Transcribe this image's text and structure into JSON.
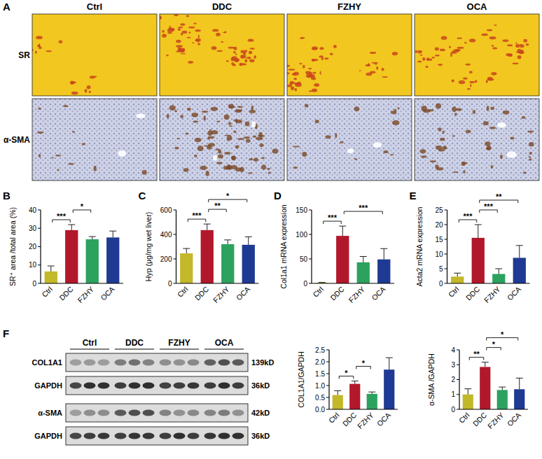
{
  "panel_a": {
    "panel": "A",
    "columns": [
      "Ctrl",
      "DDC",
      "FZHY",
      "OCA"
    ],
    "rows": [
      "SR",
      "α-SMA"
    ]
  },
  "panel_f_blot": {
    "panel": "F",
    "groups": [
      "Ctrl",
      "DDC",
      "FZHY",
      "OCA"
    ],
    "rows": [
      {
        "label": "COL1A1",
        "size": "139kD"
      },
      {
        "label": "GAPDH",
        "size": "36kD"
      },
      {
        "label": "α-SMA",
        "size": "42kD"
      },
      {
        "label": "GAPDH",
        "size": "36kD"
      }
    ]
  },
  "chart_data": [
    {
      "type": "bar",
      "panel": "B",
      "ylabel": "SR⁺ area /total area (%)",
      "categories": [
        "Ctrl",
        "DDC",
        "FZHY",
        "OCA"
      ],
      "values": [
        6.5,
        29,
        24,
        25
      ],
      "errors": [
        3,
        3,
        1.5,
        3.5
      ],
      "colors": [
        "#c2b82a",
        "#b2182b",
        "#2ca25f",
        "#1f3a93"
      ],
      "ylim": [
        0,
        40
      ],
      "yticks": [
        0,
        10,
        20,
        30,
        40
      ],
      "grid": false,
      "annotations": [
        {
          "text": "***",
          "between": [
            "Ctrl",
            "DDC"
          ]
        },
        {
          "text": "*",
          "between": [
            "DDC",
            "FZHY"
          ]
        }
      ]
    },
    {
      "type": "bar",
      "panel": "C",
      "ylabel": "Hyp (μg/mg wet liver)",
      "categories": [
        "Ctrl",
        "DDC",
        "FZHY",
        "OCA"
      ],
      "values": [
        245,
        435,
        320,
        315
      ],
      "errors": [
        40,
        50,
        35,
        65
      ],
      "colors": [
        "#c2b82a",
        "#b2182b",
        "#2ca25f",
        "#1f3a93"
      ],
      "ylim": [
        0,
        600
      ],
      "yticks": [
        0,
        200,
        400,
        600
      ],
      "grid": false,
      "annotations": [
        {
          "text": "***",
          "between": [
            "Ctrl",
            "DDC"
          ]
        },
        {
          "text": "**",
          "between": [
            "DDC",
            "FZHY"
          ]
        },
        {
          "text": "*",
          "between": [
            "DDC",
            "OCA"
          ]
        }
      ]
    },
    {
      "type": "bar",
      "panel": "D",
      "ylabel": "Col1a1 mRNA expression",
      "categories": [
        "Ctrl",
        "DDC",
        "FZHY",
        "OCA"
      ],
      "values": [
        1.2,
        97,
        43,
        49
      ],
      "errors": [
        0.8,
        20,
        12,
        22
      ],
      "colors": [
        "#c2b82a",
        "#b2182b",
        "#2ca25f",
        "#1f3a93"
      ],
      "ylim": [
        0,
        150
      ],
      "yticks": [
        0,
        50,
        100,
        150
      ],
      "grid": false,
      "annotations": [
        {
          "text": "***",
          "between": [
            "Ctrl",
            "DDC"
          ]
        },
        {
          "text": "***",
          "between": [
            "DDC",
            "OCA"
          ]
        }
      ]
    },
    {
      "type": "bar",
      "panel": "E",
      "ylabel": "Acta2 mRNA expression",
      "categories": [
        "Ctrl",
        "DDC",
        "FZHY",
        "OCA"
      ],
      "values": [
        2.3,
        15.5,
        3.2,
        8.7
      ],
      "errors": [
        1.2,
        4.5,
        1.8,
        4.2
      ],
      "colors": [
        "#c2b82a",
        "#b2182b",
        "#2ca25f",
        "#1f3a93"
      ],
      "ylim": [
        0,
        25
      ],
      "yticks": [
        0,
        5,
        10,
        15,
        20,
        25
      ],
      "grid": false,
      "annotations": [
        {
          "text": "***",
          "between": [
            "Ctrl",
            "DDC"
          ]
        },
        {
          "text": "***",
          "between": [
            "DDC",
            "FZHY"
          ]
        },
        {
          "text": "**",
          "between": [
            "DDC",
            "OCA"
          ]
        }
      ]
    },
    {
      "type": "bar",
      "ylabel": "COL1A1/GAPDH",
      "categories": [
        "Ctrl",
        "DDC",
        "FZHY",
        "OCA"
      ],
      "values": [
        0.6,
        1.07,
        0.65,
        1.67
      ],
      "errors": [
        0.18,
        0.12,
        0.08,
        0.5
      ],
      "colors": [
        "#c2b82a",
        "#b2182b",
        "#2ca25f",
        "#1f3a93"
      ],
      "ylim": [
        0,
        2.5
      ],
      "yticks": [
        {
          "value": 0,
          "label": "0.0"
        },
        0.5,
        {
          "value": 1,
          "label": "1.0"
        },
        1.5,
        {
          "value": 2,
          "label": "2.0"
        },
        2.5
      ],
      "grid": false,
      "annotations": [
        {
          "text": "*",
          "between": [
            "Ctrl",
            "DDC"
          ]
        },
        {
          "text": "*",
          "between": [
            "DDC",
            "FZHY"
          ]
        }
      ]
    },
    {
      "type": "bar",
      "ylabel": "α-SMA /GAPDH",
      "categories": [
        "Ctrl",
        "DDC",
        "FZHY",
        "OCA"
      ],
      "values": [
        1.0,
        2.85,
        1.3,
        1.35
      ],
      "errors": [
        0.38,
        0.32,
        0.2,
        0.75
      ],
      "colors": [
        "#c2b82a",
        "#b2182b",
        "#2ca25f",
        "#1f3a93"
      ],
      "ylim": [
        0,
        4
      ],
      "yticks": [
        0,
        1,
        2,
        3,
        4
      ],
      "grid": false,
      "annotations": [
        {
          "text": "**",
          "between": [
            "Ctrl",
            "DDC"
          ]
        },
        {
          "text": "*",
          "between": [
            "DDC",
            "FZHY"
          ]
        },
        {
          "text": "*",
          "between": [
            "DDC",
            "OCA"
          ]
        }
      ]
    }
  ]
}
